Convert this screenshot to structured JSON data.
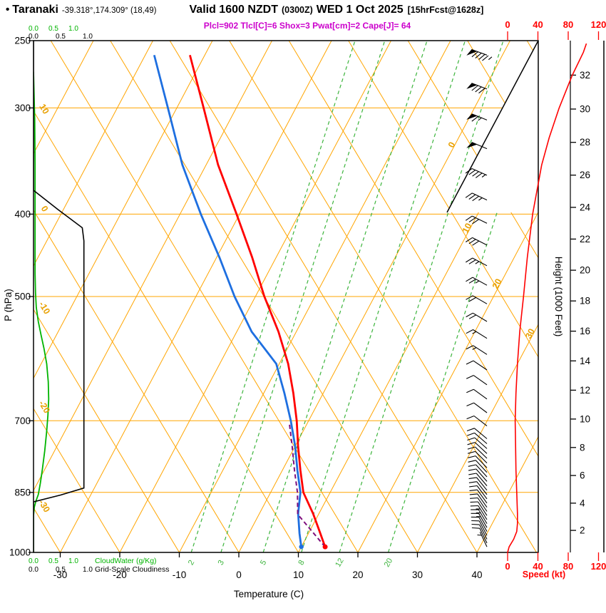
{
  "header": {
    "bullet": "•",
    "station": "Taranaki",
    "coords": "-39.318°,174.309° (18,49)",
    "valid": "Valid 1600 NZDT",
    "valid_utc": "(0300Z)",
    "date": "WED 1 Oct 2025",
    "forecast": "[15hrFcst@1628z]",
    "indices": "Plcl=902 Tlcl[C]=6 Shox=3 Pwat[cm]=2 Cape[J]= 64"
  },
  "axes": {
    "pressure_title": "P (hPa)",
    "temp_title": "Temperature (C)",
    "height_title": "Height (1000 Feet)",
    "speed_title": "Speed (kt)",
    "cloudwater_title": "CloudWater (g/Kg)",
    "cloudiness_title": "Grid-Scale Cloudiness",
    "scale_ticks": [
      "0.0",
      "0.5",
      "1.0"
    ]
  },
  "colors": {
    "grid": "#FFA500",
    "temp": "#FF0000",
    "dewpoint": "#1E6FE0",
    "parcel": "#7D0E7D",
    "cloudwater": "#00B400",
    "cloudiness": "#000000",
    "mixing": "#3CB43C",
    "indices": "#CC00CC",
    "speed": "#FF0000",
    "barbs": "#000000",
    "inline_labels": "#E8A000"
  },
  "chart_data": {
    "type": "skewt_log_p_sounding",
    "pressure_axis_hPa": [
      250,
      300,
      400,
      500,
      700,
      850,
      1000
    ],
    "temp_axis_C": [
      -30,
      -20,
      -10,
      0,
      10,
      20,
      30,
      40
    ],
    "height_axis_kft": [
      2,
      4,
      6,
      8,
      10,
      12,
      14,
      16,
      18,
      20,
      22,
      24,
      26,
      28,
      30,
      32
    ],
    "speed_axis_kt": [
      0,
      40,
      80,
      120
    ],
    "mixing_ratio_gkg": [
      2,
      3,
      5,
      8,
      12,
      20
    ],
    "isotherm_inline_labels": [
      0,
      10,
      20,
      30
    ],
    "adiabat_inline_labels": [
      10,
      0,
      -10,
      -20,
      -30
    ],
    "temperature": {
      "p": [
        985,
        950,
        900,
        850,
        800,
        750,
        700,
        650,
        600,
        550,
        500,
        450,
        400,
        350,
        300,
        260
      ],
      "t": [
        14,
        12,
        9,
        5.5,
        3,
        0.5,
        -2,
        -5,
        -8.5,
        -13,
        -18.5,
        -24,
        -30.5,
        -38,
        -45.5,
        -52.5
      ]
    },
    "dewpoint": {
      "p": [
        985,
        950,
        900,
        850,
        800,
        750,
        700,
        650,
        600,
        550,
        500,
        450,
        400,
        350,
        300,
        260
      ],
      "t": [
        10,
        8.5,
        6.5,
        5,
        2.5,
        0,
        -3,
        -6.5,
        -10.5,
        -17.5,
        -23.5,
        -29.5,
        -36.5,
        -44,
        -51.5,
        -58.5
      ]
    },
    "parcel": {
      "p": [
        985,
        902,
        850,
        800,
        750,
        705
      ],
      "t": [
        14,
        6.5,
        4.5,
        2,
        -0.5,
        -3
      ]
    },
    "cloud_water": {
      "p": [
        1000,
        905,
        885,
        870,
        855,
        830,
        800,
        760,
        720,
        690,
        660,
        630,
        600,
        575,
        555,
        535,
        515,
        495,
        470,
        440,
        400,
        350,
        310,
        285,
        272
      ],
      "v": [
        0,
        0,
        0.02,
        0.06,
        0.12,
        0.17,
        0.22,
        0.28,
        0.33,
        0.36,
        0.38,
        0.37,
        0.33,
        0.26,
        0.19,
        0.12,
        0.07,
        0.05,
        0.04,
        0.04,
        0.04,
        0.04,
        0.03,
        0.01,
        0
      ]
    },
    "cloudiness": {
      "p": [
        1000,
        872,
        856,
        840,
        700,
        500,
        430,
        415,
        395,
        375,
        250
      ],
      "v": [
        0,
        0,
        0.5,
        0.93,
        0.93,
        0.93,
        0.93,
        0.9,
        0.45,
        0,
        0
      ]
    },
    "speed_profile": {
      "p": [
        1000,
        985,
        965,
        945,
        925,
        900,
        875,
        850,
        800,
        750,
        700,
        650,
        600,
        550,
        500,
        450,
        400,
        350,
        325,
        300,
        275,
        258,
        252
      ],
      "kt": [
        0,
        2,
        8,
        12,
        13,
        13,
        12.5,
        12,
        11,
        10.5,
        10,
        11,
        13,
        16,
        21,
        26,
        33,
        45,
        55,
        68,
        85,
        100,
        104
      ]
    },
    "wind_barbs": [
      [
        985,
        5,
        335
      ],
      [
        975,
        8,
        334
      ],
      [
        965,
        10,
        333
      ],
      [
        955,
        11,
        332
      ],
      [
        945,
        12,
        331
      ],
      [
        935,
        13,
        330
      ],
      [
        925,
        13,
        329
      ],
      [
        915,
        13,
        328
      ],
      [
        905,
        12,
        327
      ],
      [
        895,
        12,
        326
      ],
      [
        885,
        12,
        325
      ],
      [
        875,
        12,
        324
      ],
      [
        865,
        12,
        323
      ],
      [
        855,
        12,
        322
      ],
      [
        845,
        11,
        321
      ],
      [
        835,
        11,
        320
      ],
      [
        825,
        11,
        319
      ],
      [
        815,
        11,
        318
      ],
      [
        805,
        10,
        317
      ],
      [
        795,
        10,
        316
      ],
      [
        785,
        10,
        315
      ],
      [
        775,
        10,
        314
      ],
      [
        765,
        10,
        313
      ],
      [
        755,
        10,
        312
      ],
      [
        745,
        10,
        311
      ],
      [
        735,
        10,
        310
      ],
      [
        710,
        10,
        308
      ],
      [
        685,
        10,
        307
      ],
      [
        660,
        11,
        306
      ],
      [
        635,
        11,
        305
      ],
      [
        610,
        12,
        304
      ],
      [
        585,
        14,
        303
      ],
      [
        560,
        16,
        302
      ],
      [
        535,
        18,
        301
      ],
      [
        510,
        21,
        300
      ],
      [
        485,
        24,
        299
      ],
      [
        460,
        26,
        298
      ],
      [
        435,
        29,
        297
      ],
      [
        410,
        32,
        296
      ],
      [
        385,
        37,
        295
      ],
      [
        360,
        43,
        294
      ],
      [
        335,
        52,
        293
      ],
      [
        310,
        63,
        292
      ],
      [
        285,
        78,
        291
      ],
      [
        260,
        95,
        290
      ]
    ]
  }
}
